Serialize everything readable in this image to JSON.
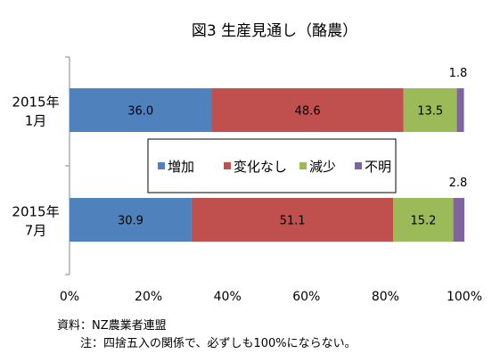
{
  "chart_data": {
    "type": "bar",
    "orientation": "horizontal",
    "stacked": "percent",
    "title": "図3 生産見通し（酪農）",
    "categories": [
      "2015年\n1月",
      "2015年\n7月"
    ],
    "series": [
      {
        "name": "増加",
        "color": "#4f81bd",
        "values": [
          36.0,
          30.9
        ]
      },
      {
        "name": "変化なし",
        "color": "#c0504d",
        "values": [
          48.6,
          51.1
        ]
      },
      {
        "name": "減少",
        "color": "#9bbb59",
        "values": [
          13.5,
          15.2
        ]
      },
      {
        "name": "不明",
        "color": "#8064a2",
        "values": [
          1.8,
          2.8
        ]
      }
    ],
    "value_labels": [
      [
        "36.0",
        "48.6",
        "13.5",
        "1.8"
      ],
      [
        "30.9",
        "51.1",
        "15.2",
        "2.8"
      ]
    ],
    "xlim": [
      0,
      100
    ],
    "xticks": [
      "0%",
      "20%",
      "40%",
      "60%",
      "80%",
      "100%"
    ],
    "legend": "center",
    "grid": false,
    "notes": [
      "資料：NZ農業者連盟",
      "注：四捨五入の関係で、必ずしも100%にならない。"
    ]
  }
}
